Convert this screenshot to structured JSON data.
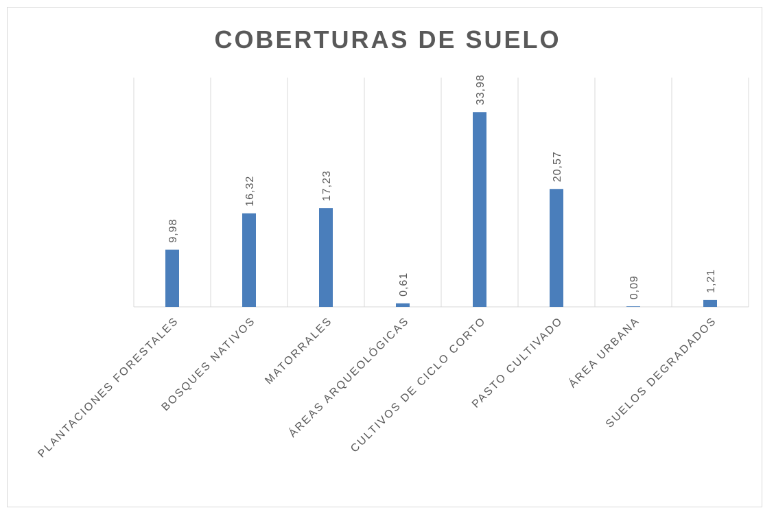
{
  "chart_data": {
    "type": "bar",
    "title": "COBERTURAS DE SUELO",
    "categories": [
      "PLANTACIONES FORESTALES",
      "BOSQUES NATIVOS",
      "MATORRALES",
      "ÁREAS ARQUEOLÓGICAS",
      "CULTIVOS DE CICLO CORTO",
      "PASTO CULTIVADO",
      "ÁREA URBANA",
      "SUELOS DEGRADADOS"
    ],
    "values": [
      9.98,
      16.32,
      17.23,
      0.61,
      33.98,
      20.57,
      0.09,
      1.21
    ],
    "value_labels": [
      "9,98",
      "16,32",
      "17,23",
      "0,61",
      "33,98",
      "20,57",
      "0,09",
      "1,21"
    ],
    "color": "#4a7ebb",
    "ylim": [
      0,
      40
    ],
    "grid": true
  }
}
